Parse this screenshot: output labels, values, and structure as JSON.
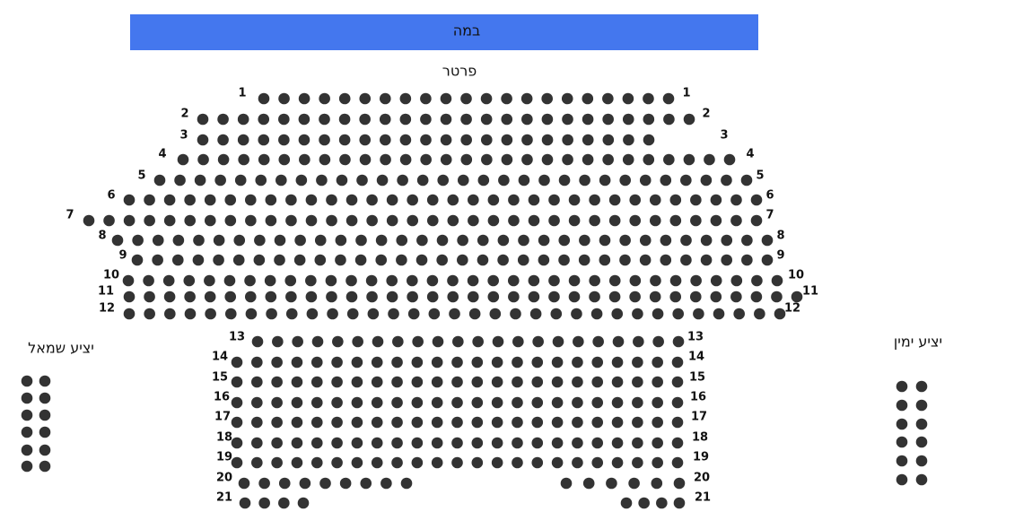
{
  "stage": "במה",
  "section": "פרטר",
  "balcony_left": "יציע שמאל",
  "balcony_right": "יציע ימין",
  "rows": [
    "1",
    "2",
    "3",
    "4",
    "5",
    "6",
    "7",
    "8",
    "9",
    "10",
    "11",
    "12",
    "13",
    "14",
    "15",
    "16",
    "17",
    "18",
    "19",
    "20",
    "21"
  ]
}
